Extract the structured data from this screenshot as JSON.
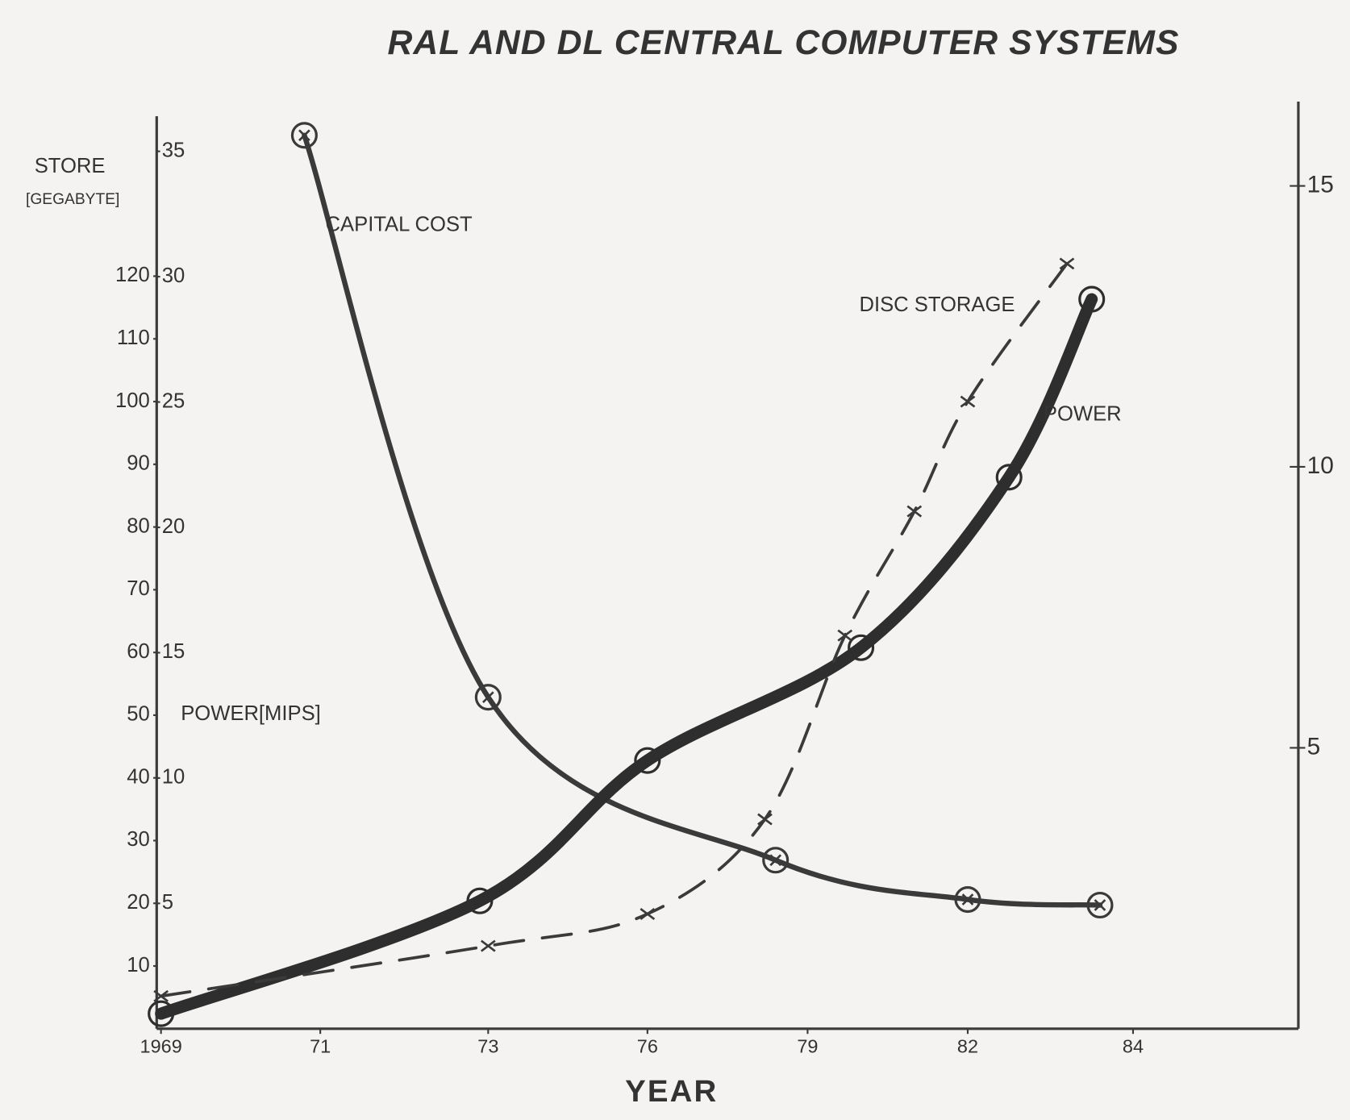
{
  "chart_data": {
    "type": "line",
    "title": "RAL AND DL CENTRAL COMPUTER SYSTEMS",
    "x_label": "YEAR",
    "y_label": "STORE",
    "y_label_unit": "[GEGABYTE]",
    "y3_label": "POWER[MIPS]",
    "xlim": [
      1969,
      1986
    ],
    "xticks": [
      1969,
      {
        "value": 1971,
        "label": "71"
      },
      {
        "value": 1973,
        "label": "73"
      },
      {
        "value": 1976,
        "label": "76"
      },
      {
        "value": 1979,
        "label": "79"
      },
      {
        "value": 1982,
        "label": "82"
      },
      {
        "value": 1984,
        "label": "84"
      }
    ],
    "ylim": [
      0,
      145.5
    ],
    "yticks": [
      10,
      20,
      30,
      40,
      50,
      60,
      70,
      80,
      90,
      100,
      110,
      120
    ],
    "y3lim": [
      0,
      36.4
    ],
    "y3ticks": [
      5,
      10,
      15,
      20,
      25,
      30,
      35
    ],
    "y2lim": [
      0,
      16.5
    ],
    "y2ticks": [
      5,
      10,
      15
    ],
    "series": [
      {
        "name": "CAPITAL COST",
        "axis": "y2",
        "color": "#3a3a3a",
        "style": "solid",
        "marker": "circle-cross",
        "x": [
          1970.8,
          1973,
          1978.4,
          1982,
          1983.6
        ],
        "values": [
          15.9,
          5.9,
          3.0,
          2.3,
          2.2
        ]
      },
      {
        "name": "POWER",
        "axis": "y3",
        "color": "#2e2e2e",
        "style": "thick",
        "marker": "circle-dot",
        "x": [
          1969,
          1972.9,
          1976,
          1980,
          1982.5,
          1983.5
        ],
        "values": [
          0.6,
          5.1,
          10.7,
          15.2,
          22,
          29.1
        ]
      },
      {
        "name": "DISC STORAGE",
        "axis": "y",
        "color": "#3a3a3a",
        "style": "dashed",
        "marker": "cross",
        "x": [
          1969,
          1973,
          1976,
          1978.2,
          1979.7,
          1981,
          1982,
          1983.2
        ],
        "values": [
          5.2,
          13.2,
          18.3,
          33.4,
          62.7,
          82.5,
          100,
          122
        ]
      }
    ]
  }
}
